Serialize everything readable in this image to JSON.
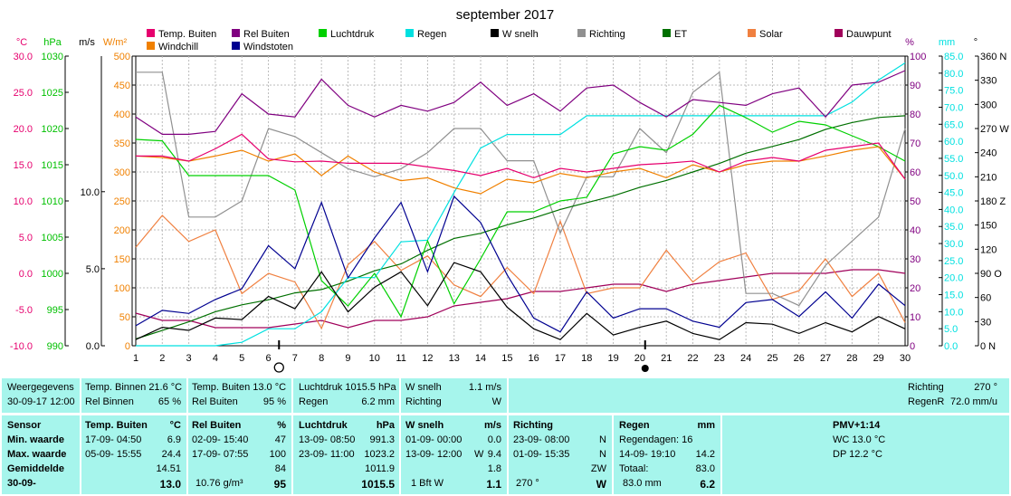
{
  "chart_data": {
    "type": "line",
    "title": "september 2017",
    "x_categories": [
      "1",
      "2",
      "3",
      "4",
      "5",
      "6",
      "7",
      "8",
      "9",
      "10",
      "11",
      "12",
      "13",
      "14",
      "15",
      "16",
      "17",
      "18",
      "19",
      "20",
      "21",
      "22",
      "23",
      "24",
      "25",
      "26",
      "27",
      "28",
      "29",
      "30"
    ],
    "moon_phases": [
      {
        "day": 6.4,
        "phase": "full"
      },
      {
        "day": 20.2,
        "phase": "new"
      }
    ],
    "legend": [
      {
        "label": "Temp. Buiten",
        "color": "#e6006e"
      },
      {
        "label": "Rel Buiten",
        "color": "#800080"
      },
      {
        "label": "Luchtdruk",
        "color": "#00d000"
      },
      {
        "label": "Regen",
        "color": "#00e0e0"
      },
      {
        "label": "W snelh",
        "color": "#000000"
      },
      {
        "label": "Richting",
        "color": "#909090"
      },
      {
        "label": "ET",
        "color": "#007000"
      },
      {
        "label": "Solar",
        "color": "#f08040"
      },
      {
        "label": "Dauwpunt",
        "color": "#a0005a"
      },
      {
        "label": "Windchill",
        "color": "#f08000"
      },
      {
        "label": "Windstoten",
        "color": "#000090"
      }
    ],
    "axes_left": [
      {
        "unit": "°C",
        "color": "#e6006e",
        "ticks": [
          "30.0",
          "25.0",
          "20.0",
          "15.0",
          "10.0",
          "5.0",
          "0.0",
          "-5.0",
          "-10.0"
        ]
      },
      {
        "unit": "hPa",
        "color": "#00c000",
        "ticks": [
          "1030",
          "1025",
          "1020",
          "1015",
          "1010",
          "1005",
          "1000",
          "995",
          "990"
        ]
      },
      {
        "unit": "m/s",
        "color": "#000000",
        "ticks": [
          "10.0",
          "5.0",
          "0.0"
        ]
      },
      {
        "unit": "W/m²",
        "color": "#f08000",
        "ticks": [
          "500",
          "450",
          "400",
          "350",
          "300",
          "250",
          "200",
          "150",
          "100",
          "50",
          "0"
        ]
      }
    ],
    "axes_right": [
      {
        "unit": "%",
        "color": "#800080",
        "ticks": [
          "100",
          "90",
          "80",
          "70",
          "60",
          "50",
          "40",
          "30",
          "20",
          "10",
          "0"
        ]
      },
      {
        "unit": "mm",
        "color": "#00e0e0",
        "ticks": [
          "85.0",
          "80.0",
          "75.0",
          "70.0",
          "65.0",
          "60.0",
          "55.0",
          "50.0",
          "45.0",
          "40.0",
          "35.0",
          "30.0",
          "25.0",
          "20.0",
          "15.0",
          "10.0",
          "5.0",
          "0.0"
        ]
      },
      {
        "unit": "°",
        "color": "#000000",
        "ticks": [
          "360 N",
          "330",
          "300",
          "270 W",
          "240",
          "210",
          "180 Z",
          "150",
          "120",
          "90 O",
          "60",
          "30",
          "0 N"
        ]
      }
    ],
    "series": [
      {
        "name": "Temp. Buiten",
        "unit": "°C",
        "color": "#e6006e",
        "values": [
          16.2,
          16.2,
          15.5,
          17.2,
          19.2,
          15.8,
          15.4,
          15.5,
          15.2,
          15.2,
          15.2,
          14.7,
          14.2,
          13.5,
          14.5,
          13.2,
          14.5,
          14.0,
          14.5,
          15.0,
          15.2,
          15.5,
          14.0,
          15.5,
          16.0,
          15.5,
          17.0,
          17.5,
          18.0,
          13.0
        ]
      },
      {
        "name": "Rel Buiten",
        "unit": "%",
        "color": "#800080",
        "values": [
          79,
          73,
          73,
          74,
          87,
          80,
          79,
          92,
          83,
          79,
          83,
          81,
          84,
          91,
          83,
          87,
          81,
          89,
          90,
          84,
          79,
          85,
          84,
          83,
          87,
          89,
          79,
          90,
          91,
          95
        ]
      },
      {
        "name": "Luchtdruk",
        "unit": "hPa",
        "color": "#00d000",
        "values": [
          1018.5,
          1018.3,
          1013.5,
          1013.5,
          1013.5,
          1013.5,
          1011.5,
          999.0,
          995.5,
          1000.0,
          994.0,
          1004.5,
          995.8,
          1002.0,
          1008.5,
          1008.5,
          1010.0,
          1010.5,
          1016.5,
          1017.5,
          1017.0,
          1019.2,
          1023.2,
          1021.5,
          1019.5,
          1021.0,
          1020.5,
          1019.0,
          1017.5,
          1015.5
        ]
      },
      {
        "name": "Regen",
        "unit": "mm",
        "color": "#00e0e0",
        "values": [
          0.0,
          0.0,
          0.0,
          0.0,
          1.0,
          5.0,
          5.0,
          10.0,
          20.0,
          20.0,
          30.5,
          31.0,
          45.0,
          58.0,
          62.0,
          62.0,
          62.0,
          67.5,
          67.5,
          67.5,
          67.5,
          67.5,
          67.5,
          67.5,
          67.5,
          67.5,
          67.5,
          71.5,
          78.0,
          83.0
        ]
      },
      {
        "name": "W snelh",
        "unit": "m/s",
        "color": "#000000",
        "values": [
          0.4,
          1.2,
          1.0,
          1.8,
          1.7,
          3.2,
          2.4,
          4.8,
          2.2,
          3.8,
          4.8,
          2.6,
          5.4,
          4.8,
          2.5,
          1.1,
          0.4,
          2.1,
          0.7,
          1.2,
          1.6,
          0.8,
          0.4,
          1.5,
          1.4,
          0.8,
          1.5,
          0.9,
          1.9,
          1.1
        ]
      },
      {
        "name": "Windstoten",
        "unit": "m/s",
        "color": "#000090",
        "values": [
          1.3,
          2.3,
          2.1,
          3.0,
          3.7,
          6.5,
          5.0,
          9.3,
          4.4,
          7.0,
          9.3,
          4.8,
          9.7,
          8.0,
          4.6,
          1.8,
          0.9,
          3.5,
          1.8,
          2.4,
          2.4,
          1.6,
          1.2,
          2.8,
          3.0,
          1.9,
          3.5,
          1.8,
          4.0,
          2.6
        ]
      },
      {
        "name": "Richting",
        "unit": "°",
        "color": "#909090",
        "values": [
          340,
          340,
          160,
          160,
          180,
          270,
          260,
          240,
          220,
          210,
          220,
          240,
          270,
          270,
          230,
          230,
          140,
          210,
          210,
          270,
          240,
          315,
          340,
          65,
          65,
          50,
          100,
          130,
          160,
          270
        ]
      },
      {
        "name": "ET",
        "unit": "mm",
        "color": "#007000",
        "values": [
          2.0,
          4.5,
          7.0,
          10.0,
          12.0,
          13.5,
          15.5,
          16.5,
          19.0,
          22.0,
          24.0,
          28.0,
          31.5,
          33.0,
          35.5,
          37.5,
          40.0,
          42.0,
          44.0,
          46.5,
          48.5,
          51.0,
          53.5,
          56.5,
          58.5,
          60.5,
          63.5,
          65.5,
          67.0,
          67.5
        ]
      },
      {
        "name": "Solar",
        "unit": "W/m²",
        "color": "#f08040",
        "values": [
          170,
          225,
          180,
          200,
          90,
          125,
          110,
          30,
          140,
          180,
          130,
          155,
          105,
          85,
          135,
          90,
          215,
          90,
          100,
          100,
          165,
          110,
          145,
          160,
          80,
          95,
          150,
          85,
          125,
          40
        ]
      },
      {
        "name": "Dauwpunt",
        "unit": "°C",
        "color": "#a0005a",
        "values": [
          -5.5,
          -6.5,
          -6.5,
          -7.5,
          -7.5,
          -7.5,
          -7.0,
          -6.5,
          -7.5,
          -6.5,
          -6.5,
          -6.0,
          -4.5,
          -4.0,
          -3.5,
          -2.5,
          -2.5,
          -2.0,
          -1.5,
          -1.5,
          -2.5,
          -1.5,
          -1.0,
          -0.5,
          0.0,
          0.0,
          0.0,
          0.5,
          0.5,
          0.0
        ]
      },
      {
        "name": "Windchill",
        "unit": "°C",
        "color": "#f08000",
        "values": [
          16.2,
          16.0,
          15.5,
          16.2,
          17.0,
          15.5,
          16.5,
          13.5,
          16.2,
          14.0,
          12.8,
          13.2,
          11.8,
          11.0,
          13.0,
          12.5,
          13.8,
          13.2,
          14.0,
          14.5,
          13.2,
          15.0,
          14.0,
          15.0,
          15.5,
          15.5,
          16.2,
          17.0,
          17.5,
          13.0
        ]
      }
    ]
  },
  "current": {
    "c1": {
      "l1": "Weergegevens",
      "l2": "30-09-17 12:00"
    },
    "c2": {
      "l1": "Temp. Binnen 21.6 °C",
      "l2a": "Rel Binnen",
      "l2b": "65 %"
    },
    "c3": {
      "l1": "Temp. Buiten  13.0 °C",
      "l2a": "Rel Buiten",
      "l2b": "95 %"
    },
    "c4": {
      "l1": "Luchtdruk 1015.5 hPa",
      "l2a": "Regen",
      "l2b": "6.2 mm"
    },
    "c5": {
      "l1a": "W snelh",
      "l1b": "1.1 m/s",
      "l2a": "Richting",
      "l2b": "W"
    },
    "c6": {
      "l1a": "Richting",
      "l1b": "270 °",
      "l2a": "RegenR",
      "l2b": "72.0 mm/u"
    }
  },
  "stats": {
    "rowlabels": {
      "h": "Sensor",
      "r1": "Min. waarde",
      "r2": "Max. waarde",
      "r3": "Gemiddelde",
      "r4": "30-09-"
    },
    "temp": {
      "h1": "Temp. Buiten",
      "h2": "°C",
      "r1a": "17-09-  04:50",
      "r1b": "6.9",
      "r2a": "05-09-  15:55",
      "r2b": "24.4",
      "r3b": "14.51",
      "r4b": "13.0"
    },
    "rel": {
      "h1": "Rel Buiten",
      "h2": "%",
      "r1a": "02-09-  15:40",
      "r1b": "47",
      "r2a": "17-09-  07:55",
      "r2b": "100",
      "r3b": "84",
      "r4a": "10.76 g/m³",
      "r4b": "95"
    },
    "druk": {
      "h1": "Luchtdruk",
      "h2": "hPa",
      "r1a": "13-09-  08:50",
      "r1b": "991.3",
      "r2a": "23-09-  11:00",
      "r2b": "1023.2",
      "r3b": "1011.9",
      "r4b": "1015.5"
    },
    "wind": {
      "h1": "W snelh",
      "h2": "m/s",
      "r1a": "01-09-  00:00",
      "r1b": "0.0",
      "r2a": "13-09-  12:00",
      "r2m": "W",
      "r2b": "9.4",
      "r3b": "1.8",
      "r4a": "1 Bft W",
      "r4b": "1.1"
    },
    "richting": {
      "h1": "Richting",
      "r1a": "23-09-  08:00",
      "r1b": "N",
      "r2a": "01-09-  15:35",
      "r2b": "N",
      "r3b": "ZW",
      "r4a": "270 °",
      "r4b": "W"
    },
    "regen": {
      "h1": "Regen",
      "h2": "mm",
      "r1a": "Regendagen: 16",
      "r2a": "14-09-  19:10",
      "r2b": "14.2",
      "r3a": "Totaal:",
      "r3b": "83.0",
      "r4a": "83.0 mm",
      "r4b": "6.2"
    },
    "pmv": {
      "h1": "PMV+1:14",
      "r1a": "WC 13.0 °C",
      "r2a": "DP 12.2 °C"
    }
  }
}
